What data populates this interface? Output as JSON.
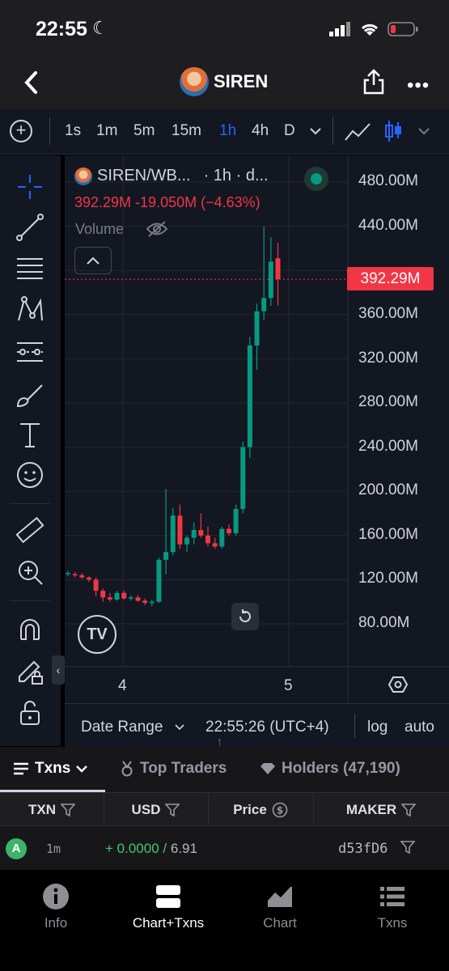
{
  "status_bar": {
    "time": "22:55"
  },
  "header": {
    "title": "SIREN"
  },
  "timeframes": {
    "items": [
      "1s",
      "1m",
      "5m",
      "15m",
      "1h",
      "4h",
      "D"
    ],
    "active": "1h"
  },
  "chart": {
    "symbol": "SIREN/WB...",
    "interval": "· 1h · d...",
    "ohlc_change": "392.29M  -19.050M (−4.63%)",
    "volume_label": "Volume",
    "current_price": "392.29M",
    "y_ticks": [
      "480.00M",
      "440.00M",
      "360.00M",
      "320.00M",
      "280.00M",
      "240.00M",
      "200.00M",
      "160.00M",
      "120.00M",
      "80.00M"
    ],
    "x_ticks": [
      "4",
      "5"
    ],
    "colors": {
      "up": "#089981",
      "down": "#f23645",
      "background": "#131722"
    }
  },
  "chart_data": {
    "type": "candlestick",
    "title": "SIREN/WB...",
    "ylim": [
      50,
      510
    ],
    "y_unit": "M",
    "x_tick_labels": [
      "4",
      "5"
    ],
    "candles": [
      {
        "o": 126,
        "h": 128,
        "l": 123,
        "c": 126
      },
      {
        "o": 125,
        "h": 127,
        "l": 122,
        "c": 124
      },
      {
        "o": 124,
        "h": 126,
        "l": 121,
        "c": 122
      },
      {
        "o": 122,
        "h": 123,
        "l": 118,
        "c": 120
      },
      {
        "o": 120,
        "h": 122,
        "l": 105,
        "c": 110
      },
      {
        "o": 110,
        "h": 112,
        "l": 100,
        "c": 104
      },
      {
        "o": 104,
        "h": 108,
        "l": 100,
        "c": 102
      },
      {
        "o": 102,
        "h": 110,
        "l": 101,
        "c": 108
      },
      {
        "o": 108,
        "h": 110,
        "l": 102,
        "c": 103
      },
      {
        "o": 103,
        "h": 106,
        "l": 101,
        "c": 104
      },
      {
        "o": 104,
        "h": 106,
        "l": 100,
        "c": 101
      },
      {
        "o": 101,
        "h": 103,
        "l": 97,
        "c": 99
      },
      {
        "o": 99,
        "h": 102,
        "l": 96,
        "c": 100
      },
      {
        "o": 100,
        "h": 140,
        "l": 99,
        "c": 138
      },
      {
        "o": 138,
        "h": 202,
        "l": 125,
        "c": 145
      },
      {
        "o": 145,
        "h": 185,
        "l": 142,
        "c": 178
      },
      {
        "o": 178,
        "h": 188,
        "l": 148,
        "c": 152
      },
      {
        "o": 152,
        "h": 160,
        "l": 145,
        "c": 158
      },
      {
        "o": 158,
        "h": 172,
        "l": 152,
        "c": 165
      },
      {
        "o": 165,
        "h": 180,
        "l": 158,
        "c": 160
      },
      {
        "o": 160,
        "h": 168,
        "l": 150,
        "c": 153
      },
      {
        "o": 153,
        "h": 158,
        "l": 148,
        "c": 150
      },
      {
        "o": 150,
        "h": 168,
        "l": 148,
        "c": 166
      },
      {
        "o": 166,
        "h": 170,
        "l": 160,
        "c": 162
      },
      {
        "o": 162,
        "h": 188,
        "l": 160,
        "c": 184
      },
      {
        "o": 184,
        "h": 245,
        "l": 180,
        "c": 240
      },
      {
        "o": 240,
        "h": 340,
        "l": 230,
        "c": 332
      },
      {
        "o": 332,
        "h": 370,
        "l": 310,
        "c": 363
      },
      {
        "o": 363,
        "h": 440,
        "l": 355,
        "c": 375
      },
      {
        "o": 375,
        "h": 430,
        "l": 368,
        "c": 408
      },
      {
        "o": 411,
        "h": 425,
        "l": 368,
        "c": 392
      }
    ]
  },
  "chart_controls": {
    "date_range": "Date Range",
    "clock": "22:55:26 (UTC+4)",
    "log": "log",
    "auto": "auto"
  },
  "tabs": [
    {
      "label": "Txns",
      "icon": "list-icon"
    },
    {
      "label": "Top Traders",
      "icon": "medal-icon"
    },
    {
      "label": "Holders (47,190)",
      "icon": "diamond-icon"
    }
  ],
  "table": {
    "headers": [
      "TXN",
      "USD",
      "Price",
      "MAKER"
    ],
    "rows": [
      {
        "badge": "A",
        "age": "1m",
        "usd_amount": "+ 0.0000",
        "usd_separator": "/",
        "usd_total": "6.91",
        "maker": "d53fD6"
      }
    ]
  },
  "bottom_nav": [
    {
      "label": "Info",
      "icon": "info-icon"
    },
    {
      "label": "Chart+Txns",
      "icon": "chart-txns-icon",
      "active": true
    },
    {
      "label": "Chart",
      "icon": "area-chart-icon"
    },
    {
      "label": "Txns",
      "icon": "list-icon"
    }
  ]
}
